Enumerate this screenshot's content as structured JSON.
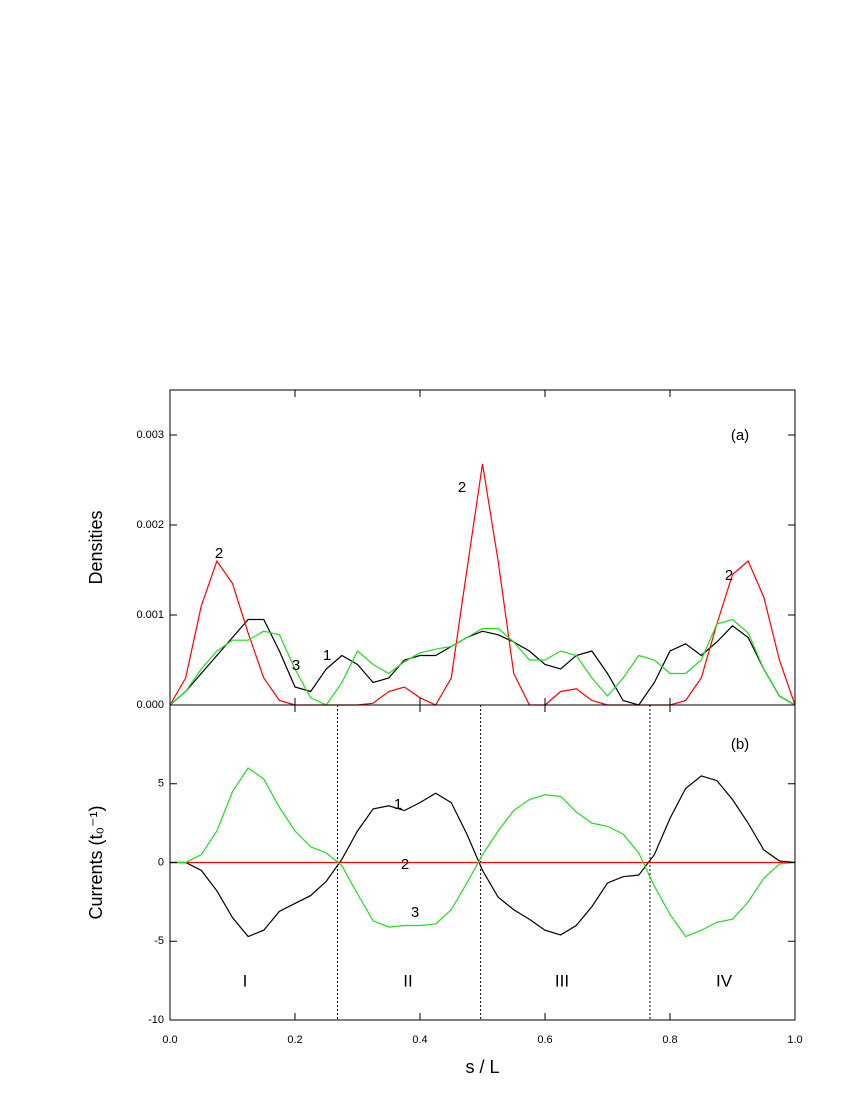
{
  "chart_data": [
    {
      "type": "line",
      "label": "(a)",
      "y_label": "Densities",
      "x": [
        0,
        0.025,
        0.05,
        0.075,
        0.1,
        0.125,
        0.15,
        0.175,
        0.2,
        0.225,
        0.25,
        0.275,
        0.3,
        0.325,
        0.35,
        0.375,
        0.4,
        0.425,
        0.45,
        0.475,
        0.5,
        0.525,
        0.55,
        0.575,
        0.6,
        0.625,
        0.65,
        0.675,
        0.7,
        0.725,
        0.75,
        0.775,
        0.8,
        0.825,
        0.85,
        0.875,
        0.9,
        0.925,
        0.95,
        0.975,
        1
      ],
      "series": [
        {
          "name": "1",
          "color": "#000000",
          "values": [
            0,
            0.00015,
            0.00035,
            0.00055,
            0.00075,
            0.00095,
            0.00095,
            0.0006,
            0.0002,
            0.00015,
            0.0004,
            0.00055,
            0.00045,
            0.00025,
            0.0003,
            0.0005,
            0.00055,
            0.00055,
            0.00065,
            0.00075,
            0.00082,
            0.00078,
            0.0007,
            0.0006,
            0.00045,
            0.0004,
            0.00055,
            0.0006,
            0.00035,
            5e-05,
            0,
            0.00025,
            0.0006,
            0.00068,
            0.00055,
            0.0007,
            0.00088,
            0.00075,
            0.0004,
            0.0001,
            0
          ]
        },
        {
          "name": "2",
          "color": "#ff0000",
          "values": [
            0,
            0.0003,
            0.0011,
            0.0016,
            0.00135,
            0.0008,
            0.0003,
            5e-05,
            0,
            0,
            0,
            0,
            0,
            2e-05,
            0.00015,
            0.0002,
            8e-05,
            0,
            0.0003,
            0.0015,
            0.00268,
            0.0016,
            0.00035,
            0,
            0,
            0.00015,
            0.00018,
            5e-05,
            0,
            0,
            0,
            0,
            0,
            5e-05,
            0.0003,
            0.0009,
            0.00145,
            0.0016,
            0.0012,
            0.0005,
            0
          ]
        },
        {
          "name": "3",
          "color": "#22dd22",
          "values": [
            0,
            0.00015,
            0.0004,
            0.0006,
            0.00072,
            0.00072,
            0.00082,
            0.00078,
            0.0004,
            8e-05,
            0,
            0.00025,
            0.0006,
            0.00045,
            0.00035,
            0.00048,
            0.00058,
            0.00062,
            0.00065,
            0.00075,
            0.00085,
            0.00085,
            0.0007,
            0.0005,
            0.0005,
            0.0006,
            0.00055,
            0.0003,
            0.0001,
            0.0003,
            0.00055,
            0.0005,
            0.00035,
            0.00035,
            0.0005,
            0.0009,
            0.00095,
            0.0008,
            0.0004,
            0.0001,
            0
          ]
        }
      ],
      "xlim": [
        0,
        1
      ],
      "xticks": [
        0,
        0.2,
        0.4,
        0.6,
        0.8,
        1
      ],
      "ylim": [
        0,
        0.0035
      ],
      "yticks": [
        {
          "value": 0,
          "label": "0.000"
        },
        {
          "value": 0.001,
          "label": "0.001"
        },
        {
          "value": 0.002,
          "label": "0.002"
        },
        {
          "value": 0.003,
          "label": "0.003"
        }
      ]
    },
    {
      "type": "line",
      "label": "(b)",
      "x_label": "s / L",
      "y_label": "Currents (t₀⁻¹)",
      "regions": [
        "I",
        "II",
        "III",
        "IV"
      ],
      "vlines": [
        0.268,
        0.497,
        0.768
      ],
      "x": [
        0,
        0.025,
        0.05,
        0.075,
        0.1,
        0.125,
        0.15,
        0.175,
        0.2,
        0.225,
        0.25,
        0.275,
        0.3,
        0.325,
        0.35,
        0.375,
        0.4,
        0.425,
        0.45,
        0.475,
        0.5,
        0.525,
        0.55,
        0.575,
        0.6,
        0.625,
        0.65,
        0.675,
        0.7,
        0.725,
        0.75,
        0.775,
        0.8,
        0.825,
        0.85,
        0.875,
        0.9,
        0.925,
        0.95,
        0.975,
        1
      ],
      "series": [
        {
          "name": "1",
          "color": "#000000",
          "values": [
            0,
            0,
            -0.5,
            -1.8,
            -3.5,
            -4.7,
            -4.3,
            -3.1,
            -2.6,
            -2.1,
            -1.2,
            0.2,
            2,
            3.4,
            3.6,
            3.3,
            3.8,
            4.4,
            3.8,
            1.8,
            -0.5,
            -2.2,
            -3,
            -3.6,
            -4.3,
            -4.6,
            -4,
            -2.8,
            -1.3,
            -0.9,
            -0.8,
            0.5,
            2.8,
            4.7,
            5.5,
            5.2,
            4,
            2.5,
            0.8,
            0.1,
            0
          ]
        },
        {
          "name": "2",
          "color": "#ff0000",
          "values": [
            0,
            0,
            0,
            0,
            0,
            0,
            0,
            0,
            0,
            0,
            0,
            0,
            0,
            0,
            0,
            0,
            0,
            0,
            0,
            0,
            0,
            0,
            0,
            0,
            0,
            0,
            0,
            0,
            0,
            0,
            0,
            0,
            0,
            0,
            0,
            0,
            0,
            0,
            0,
            0,
            0
          ]
        },
        {
          "name": "3",
          "color": "#22dd22",
          "values": [
            0,
            0,
            0.5,
            2,
            4.5,
            6,
            5.3,
            3.5,
            2,
            1,
            0.6,
            -0.2,
            -2,
            -3.7,
            -4.1,
            -4,
            -4,
            -3.9,
            -3,
            -1.3,
            0.5,
            2,
            3.3,
            4,
            4.3,
            4.2,
            3.2,
            2.5,
            2.3,
            1.8,
            0.6,
            -1.5,
            -3.3,
            -4.7,
            -4.3,
            -3.8,
            -3.6,
            -2.5,
            -1,
            -0.1,
            0
          ]
        }
      ],
      "xlim": [
        0,
        1
      ],
      "xticks": [
        {
          "value": 0,
          "label": "0.0"
        },
        {
          "value": 0.2,
          "label": "0.2"
        },
        {
          "value": 0.4,
          "label": "0.4"
        },
        {
          "value": 0.6,
          "label": "0.6"
        },
        {
          "value": 0.8,
          "label": "0.8"
        },
        {
          "value": 1,
          "label": "1.0"
        }
      ],
      "ylim": [
        -10,
        10
      ],
      "yticks": [
        -10,
        -5,
        0,
        5
      ]
    }
  ]
}
